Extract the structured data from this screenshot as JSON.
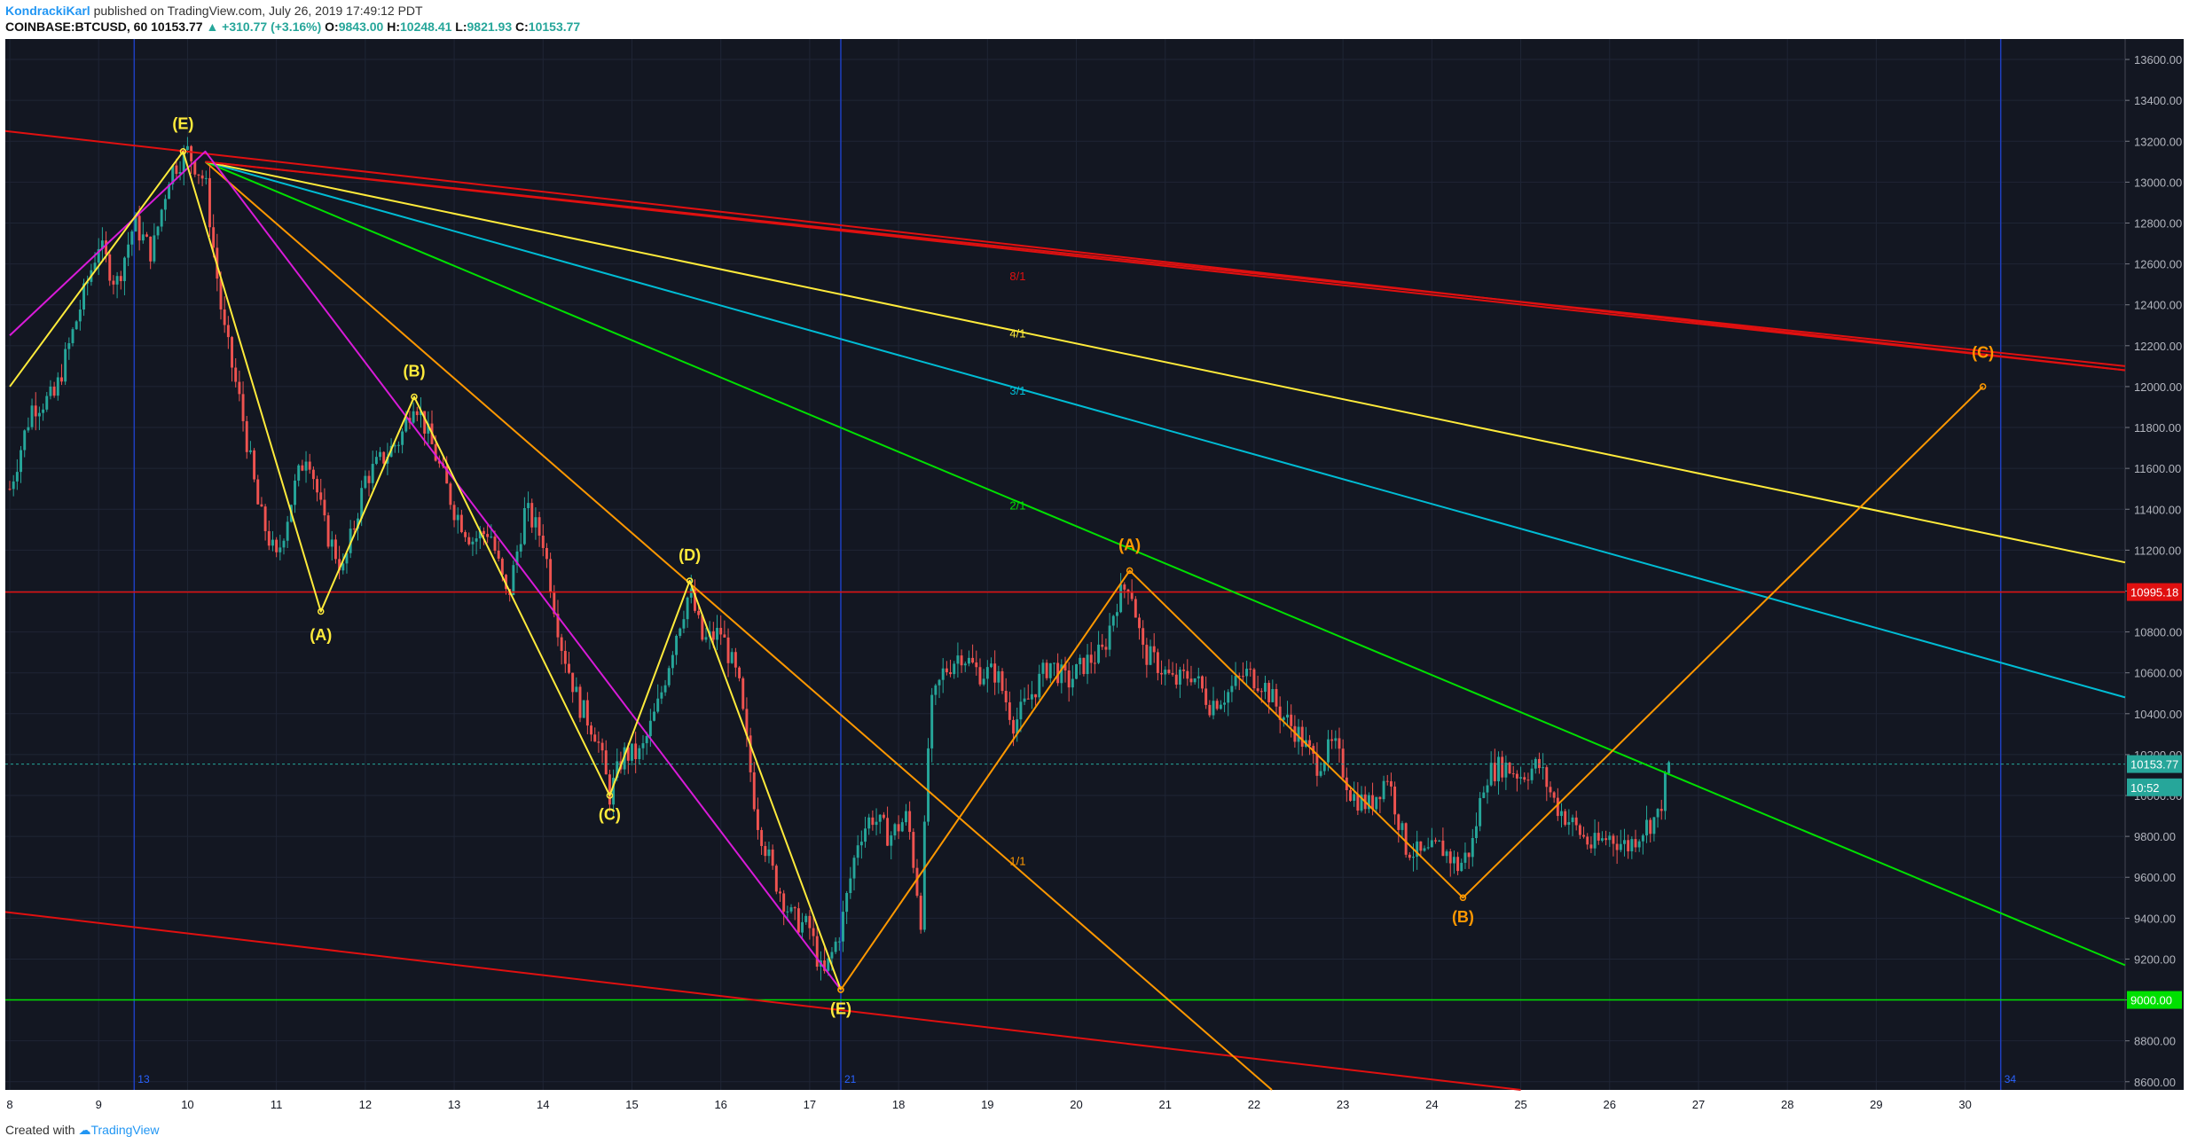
{
  "header": {
    "author": "KondrackiKarl",
    "published": " published on TradingView.com, July 26, 2019 17:49:12 PDT",
    "symbol": "COINBASE:BTCUSD, 60",
    "last": "10153.77",
    "change": "▲ +310.77 (+3.16%)",
    "o_label": "O:",
    "o_value": "9843.00",
    "h_label": "H:",
    "h_value": "10248.41",
    "l_label": "L:",
    "l_value": "9821.93",
    "c_label": "C:",
    "c_value": "10153.77"
  },
  "footer": {
    "created_with": "Created with",
    "brand": "TradingView"
  },
  "colors": {
    "background": "#131722",
    "grid": "#1f2535",
    "candle_up": "#26a69a",
    "candle_down": "#ef5350",
    "red_line": "#e01010",
    "yellow": "#ffeb3b",
    "magenta": "#d81bd8",
    "orange": "#ff9800",
    "green": "#00e000",
    "cyan": "#00bcd4",
    "blue_vertical": "#1e3fbf"
  },
  "chart_data": {
    "type": "candlestick",
    "x_axis": {
      "unit": "day (July 2019)",
      "ticks": [
        "8",
        "9",
        "10",
        "11",
        "12",
        "13",
        "14",
        "15",
        "16",
        "17",
        "18",
        "19",
        "20",
        "21",
        "22",
        "23",
        "24",
        "25",
        "26",
        "27",
        "28",
        "29",
        "30"
      ],
      "range": [
        7.95,
        31.8
      ]
    },
    "y_axis": {
      "ticks": [
        "8600.00",
        "8800.00",
        "9000.00",
        "9200.00",
        "9400.00",
        "9600.00",
        "9800.00",
        "10000.00",
        "10200.00",
        "10400.00",
        "10600.00",
        "10800.00",
        "11000.00",
        "11200.00",
        "11400.00",
        "11600.00",
        "11800.00",
        "12000.00",
        "12200.00",
        "12400.00",
        "12600.00",
        "12800.00",
        "13000.00",
        "13200.00",
        "13400.00",
        "13600.00"
      ],
      "range": [
        8560,
        13700
      ]
    },
    "price_labels": [
      {
        "value": 10995.18,
        "text": "10995.18",
        "color": "#e01010"
      },
      {
        "value": 10153.77,
        "text": "10153.77",
        "color": "#26a69a"
      },
      {
        "value": 10040,
        "text": "10:52",
        "color": "#26a69a"
      },
      {
        "value": 9000,
        "text": "9000.00",
        "color": "#00e000"
      }
    ],
    "horizontal_lines": [
      {
        "value": 10995.18,
        "color": "#e01010"
      },
      {
        "value": 9000,
        "color": "#00e000"
      },
      {
        "value": 10153.77,
        "color": "#26a69a",
        "dashed": true
      }
    ],
    "vertical_lines": [
      {
        "day": 9.4,
        "label": "13"
      },
      {
        "day": 17.35,
        "label": "21"
      },
      {
        "day": 30.4,
        "label": "34"
      }
    ],
    "waves_yellow": [
      [
        8.0,
        12000
      ],
      [
        9.95,
        13150
      ],
      [
        11.5,
        10900
      ],
      [
        12.55,
        11950
      ],
      [
        14.75,
        10000
      ],
      [
        15.65,
        11050
      ],
      [
        17.35,
        9050
      ]
    ],
    "wave_yellow_labels": [
      {
        "day": 9.95,
        "price": 13260,
        "text": "(E)"
      },
      {
        "day": 11.5,
        "price": 10760,
        "text": "(A)"
      },
      {
        "day": 12.55,
        "price": 12050,
        "text": "(B)"
      },
      {
        "day": 14.75,
        "price": 9880,
        "text": "(C)"
      },
      {
        "day": 15.65,
        "price": 11150,
        "text": "(D)"
      },
      {
        "day": 17.35,
        "price": 8930,
        "text": "(E)"
      }
    ],
    "waves_orange": [
      [
        17.35,
        9050
      ],
      [
        20.6,
        11100
      ],
      [
        24.35,
        9500
      ],
      [
        30.2,
        12000
      ]
    ],
    "wave_orange_labels": [
      {
        "day": 20.6,
        "price": 11200,
        "text": "(A)"
      },
      {
        "day": 24.35,
        "price": 9380,
        "text": "(B)"
      },
      {
        "day": 30.2,
        "price": 12140,
        "text": "(C)"
      }
    ],
    "fan_lines": [
      {
        "ratio": "1/1",
        "color": "#ff9800",
        "from": [
          10.2,
          13100
        ],
        "to": [
          22.2,
          8560
        ],
        "label_at": [
          19.25,
          9660
        ]
      },
      {
        "ratio": "2/1",
        "color": "#00e000",
        "from": [
          10.2,
          13100
        ],
        "to": [
          31.8,
          9170
        ],
        "label_at": [
          19.25,
          11400
        ]
      },
      {
        "ratio": "3/1",
        "color": "#00bcd4",
        "from": [
          10.2,
          13100
        ],
        "to": [
          31.8,
          10480
        ],
        "label_at": [
          19.25,
          11960
        ]
      },
      {
        "ratio": "4/1",
        "color": "#ffeb3b",
        "from": [
          10.2,
          13100
        ],
        "to": [
          31.8,
          11140
        ],
        "label_at": [
          19.25,
          12240
        ]
      },
      {
        "ratio": "8/1",
        "color": "#e01010",
        "from": [
          10.2,
          13100
        ],
        "to": [
          31.8,
          12100
        ],
        "label_at": [
          19.25,
          12520
        ]
      }
    ],
    "magenta_line": [
      [
        8.0,
        12250
      ],
      [
        10.2,
        13150
      ],
      [
        17.35,
        9050
      ]
    ],
    "red_channel": [
      [
        [
          7.95,
          13250
        ],
        [
          31.8,
          12080
        ]
      ],
      [
        [
          7.95,
          9430
        ],
        [
          25.0,
          8560
        ]
      ]
    ],
    "price_path": [
      [
        8.0,
        11500
      ],
      [
        8.25,
        11900
      ],
      [
        8.5,
        11950
      ],
      [
        8.8,
        12400
      ],
      [
        9.0,
        12700
      ],
      [
        9.2,
        12500
      ],
      [
        9.4,
        12800
      ],
      [
        9.6,
        12650
      ],
      [
        9.8,
        13050
      ],
      [
        10.0,
        13150
      ],
      [
        10.2,
        13000
      ],
      [
        10.4,
        12300
      ],
      [
        10.6,
        11900
      ],
      [
        10.8,
        11400
      ],
      [
        11.0,
        11150
      ],
      [
        11.2,
        11500
      ],
      [
        11.35,
        11700
      ],
      [
        11.55,
        11300
      ],
      [
        11.75,
        11100
      ],
      [
        12.0,
        11550
      ],
      [
        12.2,
        11650
      ],
      [
        12.4,
        11750
      ],
      [
        12.55,
        11950
      ],
      [
        12.8,
        11650
      ],
      [
        13.0,
        11400
      ],
      [
        13.2,
        11250
      ],
      [
        13.4,
        11300
      ],
      [
        13.6,
        10950
      ],
      [
        13.8,
        11400
      ],
      [
        14.0,
        11250
      ],
      [
        14.2,
        10750
      ],
      [
        14.4,
        10450
      ],
      [
        14.6,
        10300
      ],
      [
        14.75,
        10000
      ],
      [
        14.9,
        10200
      ],
      [
        15.1,
        10200
      ],
      [
        15.3,
        10450
      ],
      [
        15.5,
        10800
      ],
      [
        15.65,
        11000
      ],
      [
        15.8,
        10750
      ],
      [
        16.0,
        10800
      ],
      [
        16.2,
        10550
      ],
      [
        16.4,
        9900
      ],
      [
        16.6,
        9600
      ],
      [
        16.8,
        9400
      ],
      [
        17.0,
        9350
      ],
      [
        17.15,
        9100
      ],
      [
        17.35,
        9350
      ],
      [
        17.55,
        9800
      ],
      [
        17.7,
        9900
      ],
      [
        17.9,
        9800
      ],
      [
        18.1,
        9900
      ],
      [
        18.25,
        9400
      ],
      [
        18.35,
        10400
      ],
      [
        18.5,
        10600
      ],
      [
        18.7,
        10700
      ],
      [
        18.9,
        10600
      ],
      [
        19.1,
        10600
      ],
      [
        19.3,
        10350
      ],
      [
        19.5,
        10500
      ],
      [
        19.7,
        10650
      ],
      [
        19.9,
        10550
      ],
      [
        20.1,
        10650
      ],
      [
        20.3,
        10700
      ],
      [
        20.45,
        10950
      ],
      [
        20.6,
        11050
      ],
      [
        20.75,
        10700
      ],
      [
        20.9,
        10650
      ],
      [
        21.1,
        10550
      ],
      [
        21.3,
        10600
      ],
      [
        21.5,
        10450
      ],
      [
        21.7,
        10500
      ],
      [
        21.9,
        10600
      ],
      [
        22.1,
        10550
      ],
      [
        22.3,
        10400
      ],
      [
        22.5,
        10300
      ],
      [
        22.7,
        10150
      ],
      [
        22.9,
        10250
      ],
      [
        23.1,
        10000
      ],
      [
        23.3,
        9950
      ],
      [
        23.5,
        10100
      ],
      [
        23.7,
        9750
      ],
      [
        23.9,
        9700
      ],
      [
        24.1,
        9750
      ],
      [
        24.3,
        9650
      ],
      [
        24.45,
        9750
      ],
      [
        24.6,
        10100
      ],
      [
        24.8,
        10150
      ],
      [
        25.0,
        10100
      ],
      [
        25.2,
        10150
      ],
      [
        25.4,
        9950
      ],
      [
        25.6,
        9850
      ],
      [
        25.8,
        9750
      ],
      [
        26.0,
        9800
      ],
      [
        26.2,
        9750
      ],
      [
        26.4,
        9850
      ],
      [
        26.55,
        9900
      ],
      [
        26.67,
        10153
      ]
    ]
  }
}
